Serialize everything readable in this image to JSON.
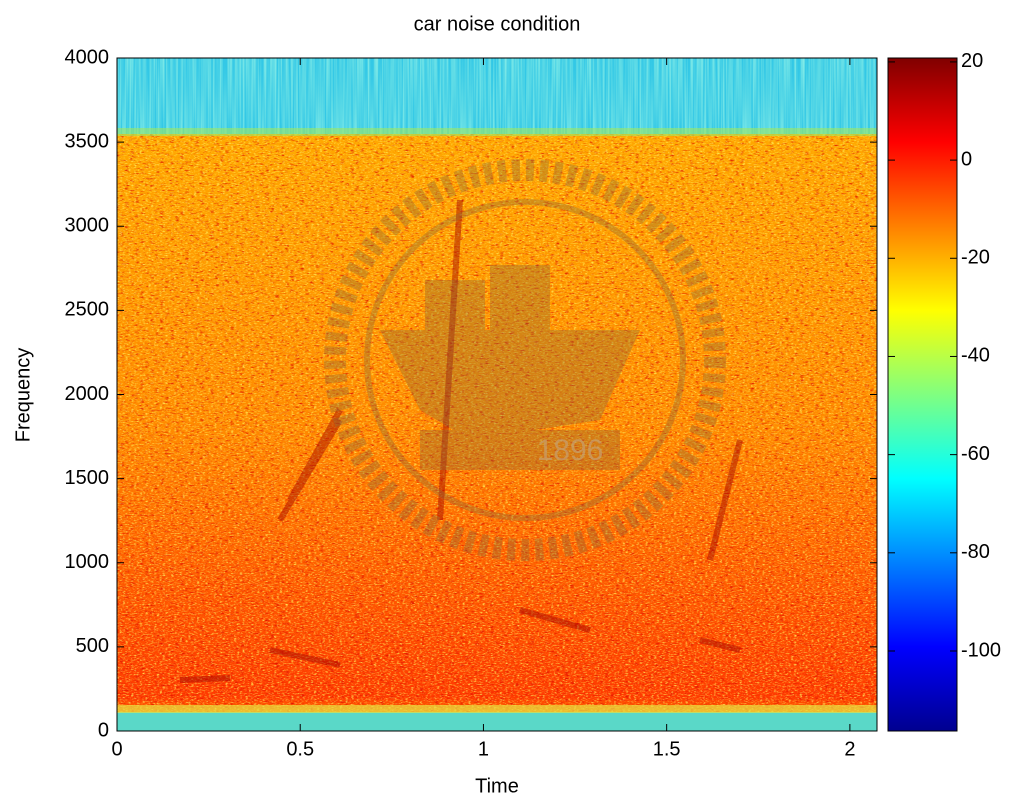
{
  "chart_data": {
    "type": "spectrogram",
    "title": "car noise condition",
    "xlabel": "Time",
    "ylabel": "Frequency",
    "xlim": [
      0,
      2.074
    ],
    "xticks": [
      0,
      0.5,
      1,
      1.5,
      2
    ],
    "ylim": [
      0,
      4000
    ],
    "yticks": [
      0,
      500,
      1000,
      1500,
      2000,
      2500,
      3000,
      3500,
      4000
    ],
    "colormap": "jet",
    "clim": [
      -116.3,
      20.8
    ],
    "cticks": [
      -100,
      -80,
      -60,
      -40,
      -20,
      0,
      20
    ],
    "watermark": "1896"
  }
}
